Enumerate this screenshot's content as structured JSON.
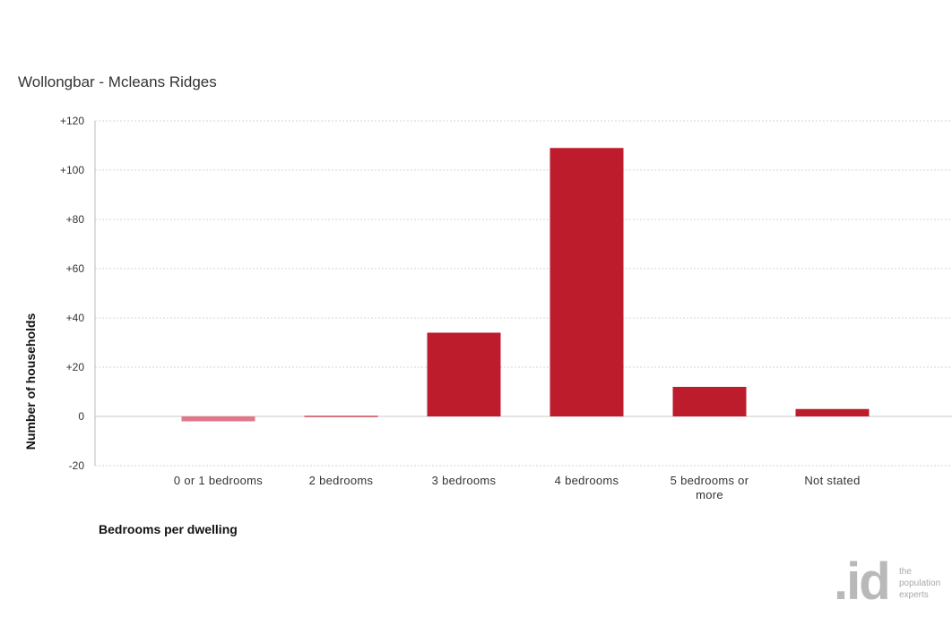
{
  "chart_data": {
    "type": "bar",
    "title": "Wollongbar - Mcleans Ridges",
    "xlabel": "Bedrooms per dwelling",
    "ylabel": "Number of households",
    "categories": [
      "0 or 1 bedrooms",
      "2 bedrooms",
      "3 bedrooms",
      "4 bedrooms",
      "5 bedrooms or more",
      "Not stated"
    ],
    "category_display_lines": [
      [
        "0 or 1 bedrooms"
      ],
      [
        "2 bedrooms"
      ],
      [
        "3 bedrooms"
      ],
      [
        "4 bedrooms"
      ],
      [
        "5 bedrooms or",
        "more"
      ],
      [
        "Not stated"
      ]
    ],
    "values": [
      -2,
      0,
      34,
      109,
      12,
      3
    ],
    "ylim": [
      -20,
      120
    ],
    "yticks": [
      -20,
      0,
      20,
      40,
      60,
      80,
      100,
      120
    ],
    "ytick_labels": [
      "-20",
      "0",
      "+20",
      "+40",
      "+60",
      "+80",
      "+100",
      "+120"
    ],
    "grid": true,
    "colors": {
      "positive": "#bd1c2c",
      "negative": "#e0788a",
      "grid": "#d4d4d4",
      "axis": "#bbbbbb"
    }
  },
  "logo": {
    "mark": ".id",
    "tagline": [
      "the",
      "population",
      "experts"
    ]
  }
}
